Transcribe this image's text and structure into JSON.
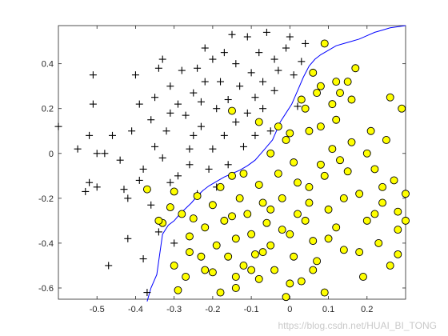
{
  "chart_data": {
    "type": "scatter",
    "xlim": [
      -0.6,
      0.3
    ],
    "ylim": [
      -0.65,
      0.57
    ],
    "x_ticks": [
      -0.5,
      -0.4,
      -0.3,
      -0.2,
      -0.1,
      0,
      0.1,
      0.2
    ],
    "y_ticks": [
      -0.6,
      -0.4,
      -0.2,
      0,
      0.2,
      0.4
    ],
    "x_tick_labels": [
      "-0.5",
      "-0.4",
      "-0.3",
      "-0.2",
      "-0.1",
      "0",
      "0.1",
      "0.2"
    ],
    "y_tick_labels": [
      "-0.6",
      "-0.4",
      "-0.2",
      "0",
      "0.2",
      "0.4"
    ],
    "grid": false,
    "colors": {
      "positive_fill": "#ffff00",
      "positive_edge": "#000000",
      "negative": "#000000",
      "boundary": "#0000ff"
    },
    "series": [
      {
        "marker": "plus",
        "points": [
          [
            -0.6,
            0.12
          ],
          [
            -0.55,
            0.02
          ],
          [
            -0.53,
            -0.17
          ],
          [
            -0.52,
            -0.13
          ],
          [
            -0.52,
            0.08
          ],
          [
            -0.51,
            0.22
          ],
          [
            -0.51,
            0.35
          ],
          [
            -0.5,
            0.0
          ],
          [
            -0.5,
            -0.15
          ],
          [
            -0.48,
            0.0
          ],
          [
            -0.47,
            -0.5
          ],
          [
            -0.46,
            0.08
          ],
          [
            -0.44,
            -0.03
          ],
          [
            -0.43,
            -0.16
          ],
          [
            -0.42,
            -0.38
          ],
          [
            -0.42,
            -0.2
          ],
          [
            -0.41,
            0.1
          ],
          [
            -0.39,
            0.22
          ],
          [
            -0.4,
            0.35
          ],
          [
            -0.39,
            -0.12
          ],
          [
            -0.38,
            -0.47
          ],
          [
            -0.38,
            -0.07
          ],
          [
            -0.37,
            -0.62
          ],
          [
            -0.36,
            0.15
          ],
          [
            -0.36,
            -0.23
          ],
          [
            -0.35,
            0.03
          ],
          [
            -0.35,
            0.25
          ],
          [
            -0.34,
            0.38
          ],
          [
            -0.34,
            -0.35
          ],
          [
            -0.33,
            0.42
          ],
          [
            -0.33,
            -0.02
          ],
          [
            -0.32,
            0.1
          ],
          [
            -0.31,
            0.3
          ],
          [
            -0.31,
            0.18
          ],
          [
            -0.31,
            -0.13
          ],
          [
            -0.3,
            -0.4
          ],
          [
            -0.29,
            0.22
          ],
          [
            -0.29,
            -0.1
          ],
          [
            -0.28,
            0.37
          ],
          [
            -0.27,
            0.17
          ],
          [
            -0.26,
            -0.05
          ],
          [
            -0.26,
            0.02
          ],
          [
            -0.25,
            0.08
          ],
          [
            -0.25,
            0.27
          ],
          [
            -0.24,
            0.38
          ],
          [
            -0.24,
            -0.18
          ],
          [
            -0.23,
            0.23
          ],
          [
            -0.23,
            0.12
          ],
          [
            -0.22,
            0.32
          ],
          [
            -0.22,
            0.47
          ],
          [
            -0.21,
            -0.07
          ],
          [
            -0.2,
            0.02
          ],
          [
            -0.2,
            0.42
          ],
          [
            -0.19,
            0.2
          ],
          [
            -0.19,
            -0.15
          ],
          [
            -0.18,
            0.32
          ],
          [
            -0.17,
            0.08
          ],
          [
            -0.17,
            0.45
          ],
          [
            -0.16,
            0.24
          ],
          [
            -0.16,
            -0.05
          ],
          [
            -0.15,
            0.53
          ],
          [
            -0.14,
            0.4
          ],
          [
            -0.14,
            0.14
          ],
          [
            -0.13,
            0.3
          ],
          [
            -0.12,
            0.03
          ],
          [
            -0.11,
            0.18
          ],
          [
            -0.11,
            0.52
          ],
          [
            -0.1,
            0.36
          ],
          [
            -0.09,
            0.25
          ],
          [
            -0.09,
            0.08
          ],
          [
            -0.08,
            0.45
          ],
          [
            -0.07,
            0.2
          ],
          [
            -0.07,
            0.32
          ],
          [
            -0.06,
            0.54
          ],
          [
            -0.05,
            0.1
          ],
          [
            -0.04,
            0.42
          ],
          [
            -0.04,
            0.28
          ],
          [
            -0.03,
            0.37
          ],
          [
            -0.01,
            0.47
          ],
          [
            -0.0,
            0.52
          ],
          [
            0.01,
            0.35
          ],
          [
            0.02,
            0.21
          ],
          [
            0.03,
            0.41
          ],
          [
            0.04,
            0.49
          ]
        ]
      },
      {
        "marker": "circle",
        "points": [
          [
            -0.37,
            -0.16
          ],
          [
            -0.33,
            -0.31
          ],
          [
            -0.3,
            -0.17
          ],
          [
            -0.3,
            -0.5
          ],
          [
            -0.29,
            -0.61
          ],
          [
            -0.28,
            -0.27
          ],
          [
            -0.27,
            -0.55
          ],
          [
            -0.26,
            -0.44
          ],
          [
            -0.25,
            -0.29
          ],
          [
            -0.24,
            -0.19
          ],
          [
            -0.23,
            -0.46
          ],
          [
            -0.22,
            -0.33
          ],
          [
            -0.2,
            -0.53
          ],
          [
            -0.2,
            -0.23
          ],
          [
            -0.19,
            -0.41
          ],
          [
            -0.18,
            -0.15
          ],
          [
            -0.17,
            -0.3
          ],
          [
            -0.16,
            -0.46
          ],
          [
            -0.15,
            0.19
          ],
          [
            -0.15,
            -0.1
          ],
          [
            -0.14,
            -0.6
          ],
          [
            -0.14,
            -0.38
          ],
          [
            -0.13,
            -0.2
          ],
          [
            -0.12,
            -0.5
          ],
          [
            -0.11,
            -0.27
          ],
          [
            -0.1,
            -0.36
          ],
          [
            -0.09,
            -0.45
          ],
          [
            -0.08,
            -0.56
          ],
          [
            -0.08,
            -0.14
          ],
          [
            -0.07,
            -0.22
          ],
          [
            -0.06,
            -0.31
          ],
          [
            -0.05,
            -0.41
          ],
          [
            -0.04,
            -0.52
          ],
          [
            -0.03,
            -0.09
          ],
          [
            -0.02,
            -0.2
          ],
          [
            -0.01,
            -0.64
          ],
          [
            0.0,
            -0.36
          ],
          [
            0.01,
            -0.46
          ],
          [
            0.02,
            -0.27
          ],
          [
            0.03,
            -0.57
          ],
          [
            0.04,
            0.2
          ],
          [
            0.05,
            0.1
          ],
          [
            0.05,
            -0.15
          ],
          [
            0.06,
            -0.39
          ],
          [
            0.07,
            -0.48
          ],
          [
            0.08,
            0.3
          ],
          [
            0.08,
            -0.05
          ],
          [
            0.09,
            -0.62
          ],
          [
            0.1,
            -0.25
          ],
          [
            0.11,
            0.02
          ],
          [
            0.12,
            0.15
          ],
          [
            0.12,
            -0.33
          ],
          [
            0.13,
            0.27
          ],
          [
            0.14,
            -0.43
          ],
          [
            0.15,
            -0.08
          ],
          [
            0.16,
            0.05
          ],
          [
            0.17,
            0.38
          ],
          [
            0.18,
            -0.18
          ],
          [
            0.19,
            -0.55
          ],
          [
            0.2,
            -0.3
          ],
          [
            0.21,
            0.1
          ],
          [
            0.22,
            -0.07
          ],
          [
            0.23,
            -0.4
          ],
          [
            0.24,
            -0.22
          ],
          [
            0.25,
            0.06
          ],
          [
            0.26,
            -0.5
          ],
          [
            0.27,
            -0.12
          ],
          [
            0.28,
            -0.34
          ],
          [
            0.29,
            0.2
          ],
          [
            0.3,
            -0.3
          ],
          [
            -0.31,
            -0.24
          ],
          [
            -0.26,
            -0.37
          ],
          [
            -0.22,
            -0.52
          ],
          [
            -0.18,
            -0.62
          ],
          [
            -0.15,
            -0.28
          ],
          [
            -0.12,
            -0.09
          ],
          [
            -0.1,
            -0.52
          ],
          [
            -0.07,
            -0.44
          ],
          [
            -0.05,
            -0.25
          ],
          [
            -0.02,
            -0.34
          ],
          [
            0.0,
            -0.58
          ],
          [
            0.02,
            -0.13
          ],
          [
            0.04,
            -0.3
          ],
          [
            0.06,
            -0.52
          ],
          [
            0.08,
            0.12
          ],
          [
            0.1,
            -0.38
          ],
          [
            0.12,
            0.32
          ],
          [
            0.14,
            -0.2
          ],
          [
            0.16,
            0.24
          ],
          [
            0.18,
            -0.44
          ],
          [
            0.2,
            0.0
          ],
          [
            0.22,
            -0.27
          ],
          [
            0.24,
            -0.15
          ],
          [
            0.26,
            0.25
          ],
          [
            0.28,
            -0.45
          ],
          [
            0.3,
            -0.18
          ],
          [
            -0.08,
            0.14
          ],
          [
            -0.05,
            0.0
          ],
          [
            -0.03,
            0.12
          ],
          [
            0.0,
            0.09
          ],
          [
            0.03,
            0.24
          ],
          [
            0.06,
            0.36
          ],
          [
            0.09,
            -0.1
          ],
          [
            0.11,
            0.22
          ],
          [
            0.13,
            -0.03
          ],
          [
            0.15,
            0.32
          ],
          [
            0.01,
            -0.04
          ],
          [
            -0.01,
            0.06
          ],
          [
            0.07,
            0.27
          ],
          [
            0.09,
            0.49
          ],
          [
            0.05,
            -0.22
          ],
          [
            -0.14,
            -0.55
          ],
          [
            -0.34,
            -0.3
          ],
          [
            0.28,
            -0.26
          ]
        ]
      }
    ],
    "boundary": [
      [
        -0.37,
        -0.66
      ],
      [
        -0.36,
        -0.6
      ],
      [
        -0.345,
        -0.54
      ],
      [
        -0.34,
        -0.48
      ],
      [
        -0.335,
        -0.42
      ],
      [
        -0.33,
        -0.36
      ],
      [
        -0.315,
        -0.32
      ],
      [
        -0.3,
        -0.3
      ],
      [
        -0.285,
        -0.27
      ],
      [
        -0.27,
        -0.245
      ],
      [
        -0.255,
        -0.22
      ],
      [
        -0.24,
        -0.19
      ],
      [
        -0.225,
        -0.165
      ],
      [
        -0.21,
        -0.145
      ],
      [
        -0.19,
        -0.125
      ],
      [
        -0.17,
        -0.105
      ],
      [
        -0.15,
        -0.09
      ],
      [
        -0.13,
        -0.075
      ],
      [
        -0.11,
        -0.055
      ],
      [
        -0.09,
        -0.03
      ],
      [
        -0.075,
        0.0
      ],
      [
        -0.06,
        0.03
      ],
      [
        -0.045,
        0.06
      ],
      [
        -0.035,
        0.1
      ],
      [
        -0.025,
        0.14
      ],
      [
        -0.01,
        0.18
      ],
      [
        0.005,
        0.22
      ],
      [
        0.02,
        0.28
      ],
      [
        0.035,
        0.34
      ],
      [
        0.05,
        0.39
      ],
      [
        0.065,
        0.42
      ],
      [
        0.08,
        0.44
      ],
      [
        0.1,
        0.46
      ],
      [
        0.12,
        0.48
      ],
      [
        0.14,
        0.49
      ],
      [
        0.16,
        0.5
      ],
      [
        0.18,
        0.51
      ],
      [
        0.2,
        0.525
      ],
      [
        0.22,
        0.54
      ],
      [
        0.24,
        0.55
      ],
      [
        0.26,
        0.56
      ],
      [
        0.28,
        0.565
      ],
      [
        0.3,
        0.57
      ]
    ]
  },
  "watermark": "https://blog.csdn.net/HUAI_BI_TONG"
}
